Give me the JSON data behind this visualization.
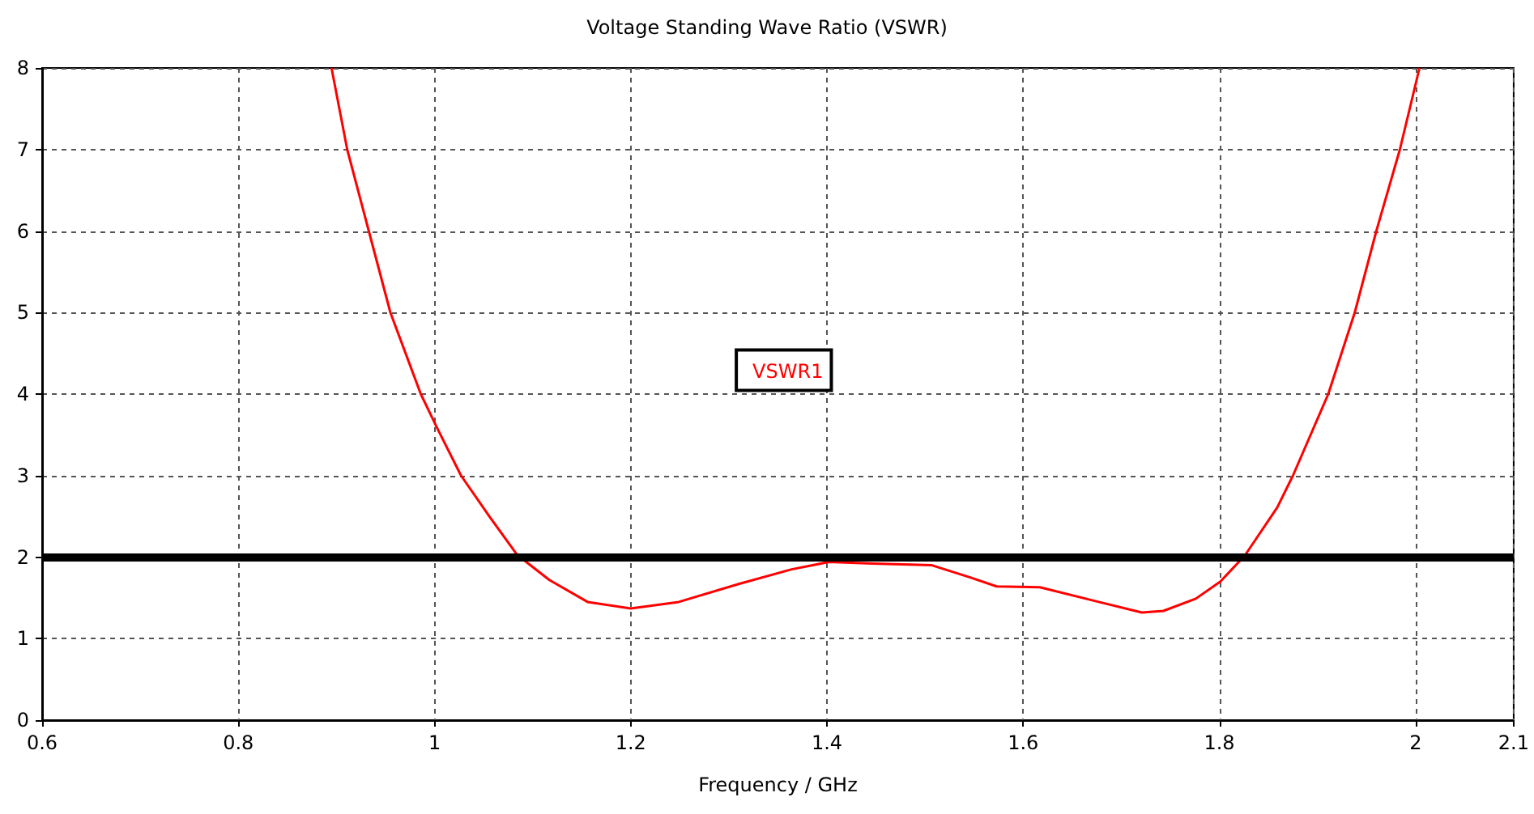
{
  "chart_data": {
    "type": "line",
    "title": "Voltage Standing Wave Ratio (VSWR)",
    "xlabel": "Frequency / GHz",
    "x": [
      0.895,
      0.911,
      0.933,
      0.955,
      0.986,
      1.002,
      1.027,
      1.057,
      1.084,
      1.117,
      1.156,
      1.2,
      1.249,
      1.31,
      1.364,
      1.402,
      1.447,
      1.507,
      1.546,
      1.573,
      1.617,
      1.677,
      1.721,
      1.743,
      1.776,
      1.801,
      1.826,
      1.859,
      1.875,
      1.911,
      1.938,
      1.96,
      1.984,
      2.004
    ],
    "series": [
      {
        "name": "VSWR1",
        "color": "#ff0000",
        "values": [
          8.0,
          7.0,
          6.0,
          5.0,
          4.0,
          3.6,
          3.0,
          2.48,
          2.03,
          1.72,
          1.45,
          1.37,
          1.45,
          1.67,
          1.85,
          1.94,
          1.92,
          1.9,
          1.75,
          1.64,
          1.63,
          1.45,
          1.32,
          1.34,
          1.49,
          1.7,
          2.02,
          2.61,
          3.0,
          4.0,
          5.0,
          6.0,
          7.0,
          8.0
        ]
      }
    ],
    "xlim": [
      0.6,
      2.1
    ],
    "xticks": [
      0.6,
      0.8,
      1,
      1.2,
      1.4,
      1.6,
      1.8,
      2,
      2.1
    ],
    "ylim": [
      0,
      8
    ],
    "yticks": [
      0,
      1,
      2,
      3,
      4,
      5,
      6,
      7,
      8
    ],
    "ref_lines": [
      {
        "axis": "y",
        "value": 2,
        "color": "#000000",
        "line_style": "solid"
      }
    ],
    "grid": true,
    "legend": "center",
    "marker": "none",
    "line_style": "solid"
  }
}
